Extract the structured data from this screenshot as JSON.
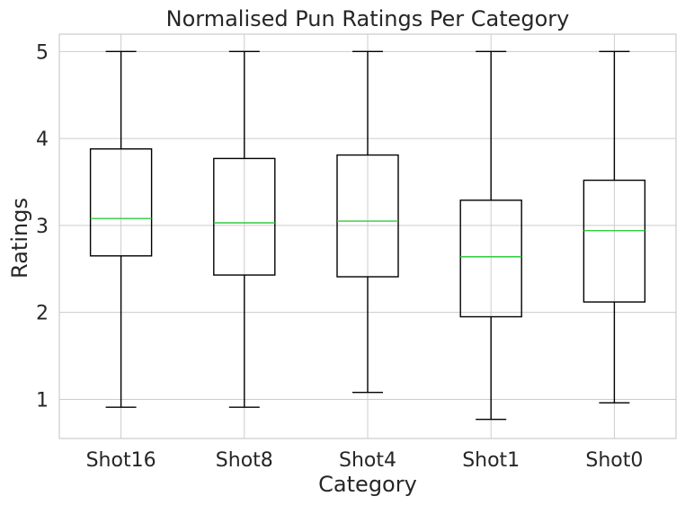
{
  "chart_data": {
    "type": "box",
    "title": "Normalised Pun Ratings Per Category",
    "xlabel": "Category",
    "ylabel": "Ratings",
    "ylim": [
      0.55,
      5.2
    ],
    "yticks": [
      1,
      2,
      3,
      4,
      5
    ],
    "grid": true,
    "colors": {
      "box": "#000000",
      "median": "#2ecc40",
      "grid": "#cccccc"
    },
    "categories": [
      "Shot16",
      "Shot8",
      "Shot4",
      "Shot1",
      "Shot0"
    ],
    "boxes": [
      {
        "category": "Shot16",
        "min": 0.91,
        "q1": 2.65,
        "median": 3.08,
        "q3": 3.88,
        "max": 5.0
      },
      {
        "category": "Shot8",
        "min": 0.91,
        "q1": 2.43,
        "median": 3.03,
        "q3": 3.77,
        "max": 5.0
      },
      {
        "category": "Shot4",
        "min": 1.08,
        "q1": 2.41,
        "median": 3.05,
        "q3": 3.81,
        "max": 5.0
      },
      {
        "category": "Shot1",
        "min": 0.77,
        "q1": 1.95,
        "median": 2.64,
        "q3": 3.29,
        "max": 5.0
      },
      {
        "category": "Shot0",
        "min": 0.96,
        "q1": 2.12,
        "median": 2.94,
        "q3": 3.52,
        "max": 5.0
      }
    ]
  }
}
